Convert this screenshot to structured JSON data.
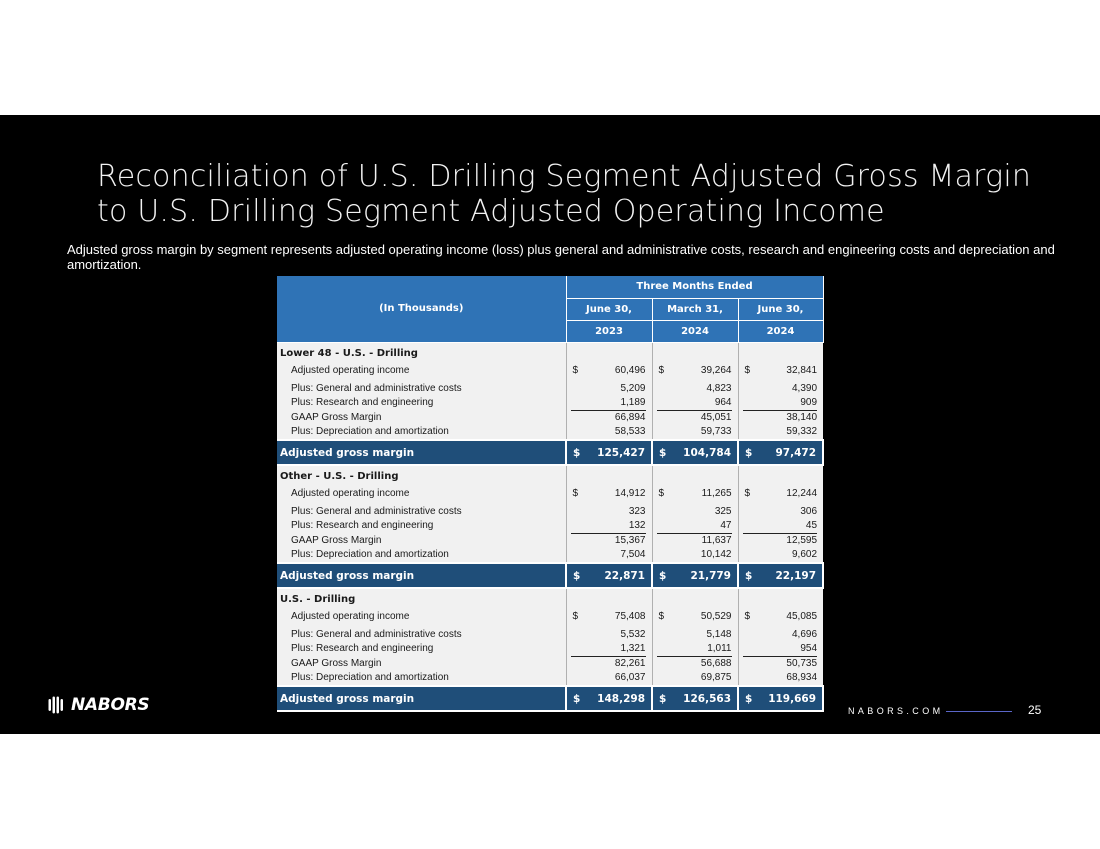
{
  "title_line1": "Reconciliation of U.S. Drilling Segment Adjusted Gross Margin",
  "title_line2": "to U.S. Drilling Segment Adjusted Operating Income",
  "subtitle": "Adjusted gross margin by segment represents adjusted operating income  (loss) plus general and administrative costs, research and engineering costs and depreciation and amortization.",
  "table": {
    "units_label": "(In Thousands)",
    "period_header": "Three Months Ended",
    "columns": [
      {
        "date": "June 30,",
        "year": "2023"
      },
      {
        "date": "March 31,",
        "year": "2024"
      },
      {
        "date": "June 30,",
        "year": "2024"
      }
    ],
    "currency": "$",
    "total_label": "Adjusted gross margin",
    "sections": [
      {
        "title": "Lower 48 - U.S. - Drilling",
        "rows": [
          {
            "label": "Adjusted operating income",
            "values": [
              "60,496",
              "39,264",
              "32,841"
            ]
          },
          {
            "label": "Plus: General and administrative costs",
            "values": [
              "5,209",
              "4,823",
              "4,390"
            ]
          },
          {
            "label": "Plus: Research and engineering",
            "values": [
              "1,189",
              "964",
              "909"
            ]
          },
          {
            "label": "GAAP Gross Margin",
            "values": [
              "66,894",
              "45,051",
              "38,140"
            ]
          },
          {
            "label": "Plus: Depreciation and amortization",
            "values": [
              "58,533",
              "59,733",
              "59,332"
            ]
          }
        ],
        "total": [
          "125,427",
          "104,784",
          "97,472"
        ]
      },
      {
        "title": "Other - U.S. - Drilling",
        "rows": [
          {
            "label": "Adjusted operating income",
            "values": [
              "14,912",
              "11,265",
              "12,244"
            ]
          },
          {
            "label": "Plus: General and administrative costs",
            "values": [
              "323",
              "325",
              "306"
            ]
          },
          {
            "label": "Plus: Research and engineering",
            "values": [
              "132",
              "47",
              "45"
            ]
          },
          {
            "label": "GAAP Gross Margin",
            "values": [
              "15,367",
              "11,637",
              "12,595"
            ]
          },
          {
            "label": "Plus: Depreciation and amortization",
            "values": [
              "7,504",
              "10,142",
              "9,602"
            ]
          }
        ],
        "total": [
          "22,871",
          "21,779",
          "22,197"
        ]
      },
      {
        "title": "U.S. - Drilling",
        "rows": [
          {
            "label": "Adjusted operating income",
            "values": [
              "75,408",
              "50,529",
              "45,085"
            ]
          },
          {
            "label": "Plus: General and administrative costs",
            "values": [
              "5,532",
              "5,148",
              "4,696"
            ]
          },
          {
            "label": "Plus: Research and engineering",
            "values": [
              "1,321",
              "1,011",
              "954"
            ]
          },
          {
            "label": "GAAP Gross Margin",
            "values": [
              "82,261",
              "56,688",
              "50,735"
            ]
          },
          {
            "label": "Plus: Depreciation and amortization",
            "values": [
              "66,037",
              "69,875",
              "68,934"
            ]
          }
        ],
        "total": [
          "148,298",
          "126,563",
          "119,669"
        ]
      }
    ]
  },
  "footer": {
    "logo_text": "NABORS",
    "website": "NABORS.COM",
    "page_number": "25"
  },
  "colors": {
    "header_blue": "#2f73b6",
    "total_navy": "#1f4e79",
    "slide_bg": "#000000"
  }
}
